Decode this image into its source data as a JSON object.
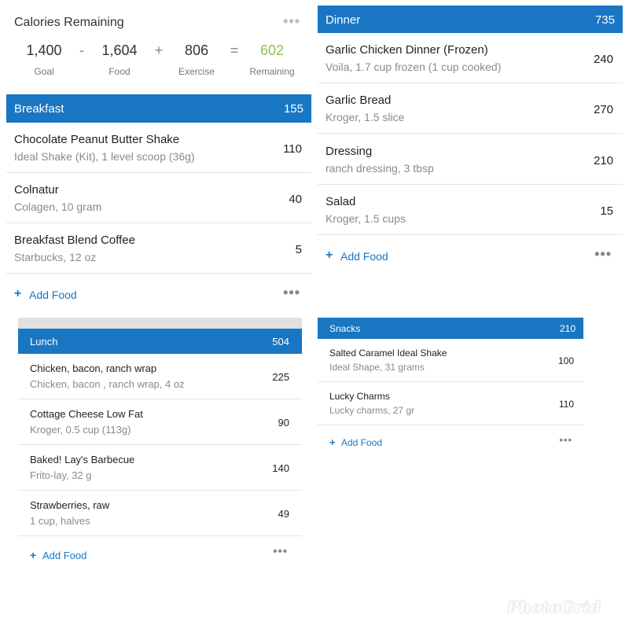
{
  "summary": {
    "title": "Calories Remaining",
    "more_icon": "more-horizontal-icon",
    "goal": {
      "value": "1,400",
      "label": "Goal"
    },
    "minus": "-",
    "food": {
      "value": "1,604",
      "label": "Food"
    },
    "plus": "+",
    "exercise": {
      "value": "806",
      "label": "Exercise"
    },
    "equals": "=",
    "remaining": {
      "value": "602",
      "label": "Remaining",
      "color": "#8bc34a"
    }
  },
  "colors": {
    "header_blue": "#1976c2",
    "link_blue": "#1976c2"
  },
  "add_food_label": "Add Food",
  "meals": {
    "breakfast": {
      "name": "Breakfast",
      "calories": "155",
      "items": [
        {
          "name": "Chocolate Peanut Butter Shake",
          "desc": "Ideal Shake (Kit), 1 level scoop (36g)",
          "cal": "110"
        },
        {
          "name": "Colnatur",
          "desc": "Colagen, 10 gram",
          "cal": "40"
        },
        {
          "name": "Breakfast Blend Coffee",
          "desc": "Starbucks, 12 oz",
          "cal": "5"
        }
      ]
    },
    "dinner": {
      "name": "Dinner",
      "calories": "735",
      "items": [
        {
          "name": "Garlic Chicken Dinner (Frozen)",
          "desc": "Voila, 1.7 cup frozen (1 cup cooked)",
          "cal": "240"
        },
        {
          "name": "Garlic Bread",
          "desc": "Kroger, 1.5 slice",
          "cal": "270"
        },
        {
          "name": "Dressing",
          "desc": "ranch dressing, 3 tbsp",
          "cal": "210"
        },
        {
          "name": "Salad",
          "desc": "Kroger, 1.5 cups",
          "cal": "15"
        }
      ]
    },
    "lunch": {
      "name": "Lunch",
      "calories": "504",
      "items": [
        {
          "name": "Chicken, bacon, ranch wrap",
          "desc": "Chicken, bacon , ranch wrap, 4 oz",
          "cal": "225"
        },
        {
          "name": "Cottage Cheese Low Fat",
          "desc": "Kroger, 0.5 cup (113g)",
          "cal": "90"
        },
        {
          "name": "Baked! Lay's Barbecue",
          "desc": "Frito-lay, 32 g",
          "cal": "140"
        },
        {
          "name": "Strawberries, raw",
          "desc": "1 cup, halves",
          "cal": "49"
        }
      ]
    },
    "snacks": {
      "name": "Snacks",
      "calories": "210",
      "items": [
        {
          "name": "Salted Caramel Ideal Shake",
          "desc": "Ideal Shape, 31 grams",
          "cal": "100"
        },
        {
          "name": "Lucky Charms",
          "desc": "Lucky charms, 27 gr",
          "cal": "110"
        }
      ]
    }
  },
  "watermark": "PhotoGrid"
}
